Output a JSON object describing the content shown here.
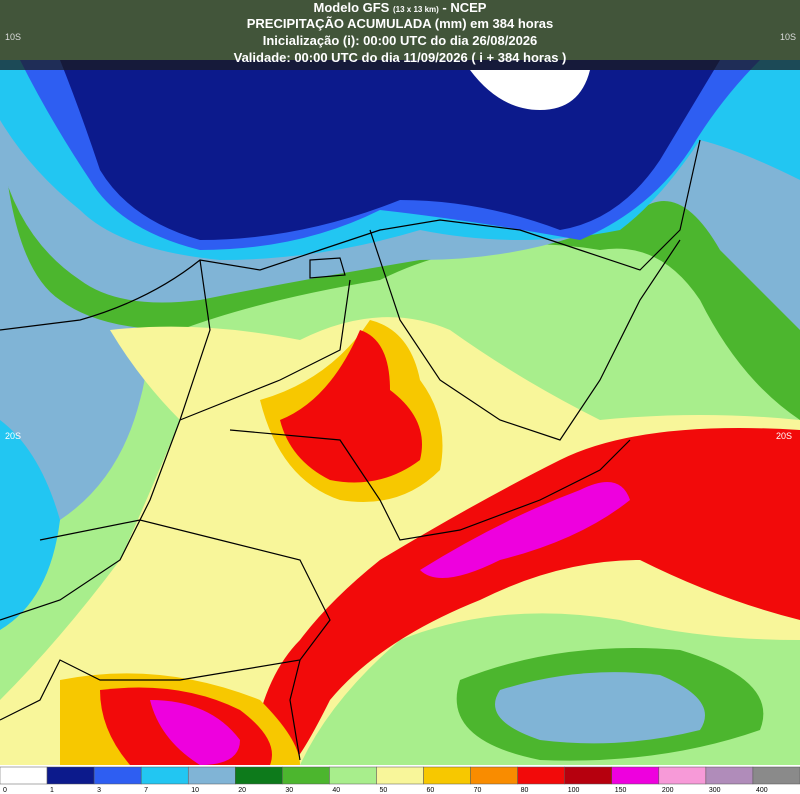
{
  "header": {
    "model": "Modelo GFS",
    "resolution": "(13 x 13 km)",
    "source": "- NCEP",
    "lines": [
      "PRECIPITAÇÃO ACUMULADA (mm) em 384 horas",
      "Inicialização (i): 00:00 UTC do dia 26/08/2026",
      "Validade: 00:00 UTC do dia 11/09/2026 ( i + 384 horas )"
    ]
  },
  "grid_labels": {
    "left": [
      "10S",
      "20S"
    ],
    "right": [
      "10S",
      "20S"
    ]
  },
  "colorbar": {
    "levels": [
      0,
      1,
      3,
      7,
      10,
      20,
      30,
      40,
      50,
      60,
      70,
      80,
      100,
      150,
      200,
      300,
      400
    ],
    "colors": [
      "#ffffff",
      "#0c1a8c",
      "#2e5ef2",
      "#22c6f2",
      "#80b4d6",
      "#0d7a1b",
      "#4cb62e",
      "#a8ee8c",
      "#f8f69a",
      "#f7c800",
      "#f98c00",
      "#f20a0a",
      "#b6000e",
      "#ee00de",
      "#f79ad8",
      "#b08cba",
      "#8a8a8a"
    ]
  }
}
